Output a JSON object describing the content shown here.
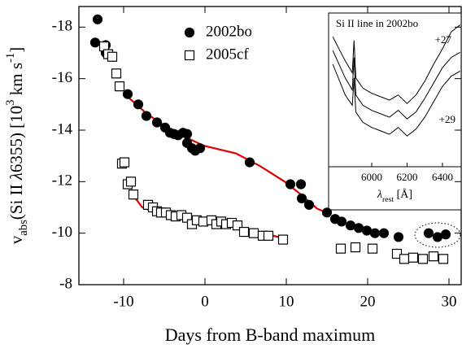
{
  "chart_data": [
    {
      "type": "scatter",
      "xlabel": "Days from B-band maximum",
      "ylabel": [
        {
          "text": "v"
        },
        {
          "text": "abs",
          "shift": "sub"
        },
        {
          "text": "(Si II "
        },
        {
          "text": "λ",
          "italic": true
        },
        {
          "text": "6355)   [10"
        },
        {
          "text": "3",
          "shift": "super"
        },
        {
          "text": " km s"
        },
        {
          "text": "-1",
          "shift": "super"
        },
        {
          "text": "]"
        }
      ],
      "xlim": [
        -15.5,
        31.5
      ],
      "xticks": [
        -10,
        0,
        10,
        20,
        30
      ],
      "ylim": [
        -8,
        -18.8
      ],
      "yticks": [
        -18,
        -16,
        -14,
        -12,
        -10,
        -8
      ],
      "series": [
        {
          "name": "2002bo",
          "marker": "circle",
          "filled": true,
          "color": "#000000",
          "x": [
            -13.5,
            -13.2,
            -12.2,
            -12.2,
            -9.5,
            -8.2,
            -7.2,
            -5.9,
            -4.9,
            -4.3,
            -3.8,
            -3.3,
            -2.7,
            -2.2,
            -2.2,
            -1.6,
            -1.2,
            -0.6,
            5.5,
            10.5,
            11.8,
            11.9,
            12.8,
            15.0,
            16.0,
            16.8,
            17.9,
            18.9,
            19.9,
            20.9,
            22.0,
            23.8,
            27.5,
            28.6,
            29.6
          ],
          "y": [
            -17.4,
            -18.3,
            -17.3,
            -17.0,
            -15.4,
            -15.0,
            -14.55,
            -14.3,
            -14.1,
            -13.9,
            -13.85,
            -13.8,
            -13.9,
            -13.85,
            -13.5,
            -13.3,
            -13.2,
            -13.3,
            -12.75,
            -11.9,
            -11.9,
            -11.35,
            -11.1,
            -10.8,
            -10.55,
            -10.45,
            -10.3,
            -10.2,
            -10.1,
            -10.0,
            -10.0,
            -9.85,
            -10.0,
            -9.85,
            -9.95
          ]
        },
        {
          "name": "2005cf",
          "marker": "square",
          "filled": false,
          "color": "#000000",
          "x": [
            -12.4,
            -11.9,
            -11.4,
            -10.9,
            -10.5,
            -10.2,
            -9.9,
            -9.5,
            -9.1,
            -8.8,
            -7.0,
            -6.4,
            -5.9,
            -5.4,
            -4.8,
            -4.2,
            -3.6,
            -2.9,
            -2.2,
            -1.6,
            -1.0,
            -0.2,
            0.8,
            1.4,
            2.0,
            2.6,
            3.3,
            4.0,
            4.8,
            6.0,
            7.1,
            7.8,
            9.6,
            16.7,
            18.5,
            20.6,
            23.6,
            24.5,
            25.6,
            26.8,
            28.1,
            29.3
          ],
          "y": [
            -17.25,
            -16.95,
            -16.85,
            -16.2,
            -15.7,
            -12.7,
            -12.75,
            -11.9,
            -12.0,
            -11.5,
            -11.1,
            -11.0,
            -10.85,
            -10.8,
            -10.8,
            -10.7,
            -10.65,
            -10.7,
            -10.6,
            -10.35,
            -10.5,
            -10.45,
            -10.5,
            -10.35,
            -10.45,
            -10.35,
            -10.4,
            -10.3,
            -10.05,
            -10.0,
            -9.9,
            -9.9,
            -9.75,
            -9.4,
            -9.45,
            -9.4,
            -9.2,
            -9.0,
            -9.05,
            -9.0,
            -9.1,
            -9.0
          ]
        }
      ],
      "fits": [
        {
          "color": "#e00000",
          "x": [
            -9.7,
            -7.2,
            -4.2,
            -0.2,
            3.8,
            6.8,
            9.8,
            11.8,
            13.8,
            15.3
          ],
          "y": [
            -15.35,
            -14.65,
            -14.0,
            -13.4,
            -13.1,
            -12.6,
            -12.0,
            -11.5,
            -10.95,
            -10.75
          ]
        },
        {
          "color": "#e00000",
          "x": [
            -8.9,
            -7.7,
            -5.2,
            -0.2,
            4.8,
            9.6
          ],
          "y": [
            -11.5,
            -11.0,
            -10.7,
            -10.5,
            -10.2,
            -9.8
          ]
        }
      ]
    },
    {
      "type": "line",
      "title": "Si II line in 2002bo",
      "xlabel": [
        {
          "text": "λ",
          "italic": true
        },
        {
          "text": "rest",
          "shift": "sub"
        },
        {
          "text": "  [Å]"
        }
      ],
      "xlim": [
        5756,
        6506
      ],
      "xticks": [
        6000,
        6200,
        6400
      ],
      "ylim": [
        0.1,
        1.0
      ],
      "annotations": [
        "+27",
        "+29"
      ],
      "series": [
        {
          "color": "#000000",
          "x": [
            5780,
            5850,
            5890,
            5900,
            5910,
            5950,
            6000,
            6050,
            6100,
            6150,
            6200,
            6250,
            6300,
            6350,
            6400,
            6450,
            6500
          ],
          "y": [
            0.86,
            0.72,
            0.65,
            0.84,
            0.62,
            0.56,
            0.53,
            0.51,
            0.49,
            0.52,
            0.47,
            0.52,
            0.6,
            0.7,
            0.79,
            0.89,
            0.93
          ]
        },
        {
          "color": "#000000",
          "x": [
            5780,
            5850,
            5890,
            5900,
            5910,
            5950,
            6000,
            6050,
            6100,
            6150,
            6200,
            6250,
            6300,
            6350,
            6400,
            6450,
            6500
          ],
          "y": [
            0.78,
            0.62,
            0.55,
            0.74,
            0.52,
            0.46,
            0.43,
            0.41,
            0.39,
            0.43,
            0.38,
            0.42,
            0.5,
            0.59,
            0.68,
            0.74,
            0.77
          ]
        },
        {
          "color": "#000000",
          "x": [
            5780,
            5850,
            5890,
            5900,
            5910,
            5950,
            6000,
            6050,
            6100,
            6150,
            6200,
            6250,
            6300,
            6350,
            6400,
            6450,
            6500
          ],
          "y": [
            0.7,
            0.52,
            0.46,
            0.62,
            0.42,
            0.36,
            0.33,
            0.31,
            0.29,
            0.33,
            0.28,
            0.32,
            0.39,
            0.48,
            0.57,
            0.63,
            0.66
          ]
        }
      ]
    }
  ]
}
